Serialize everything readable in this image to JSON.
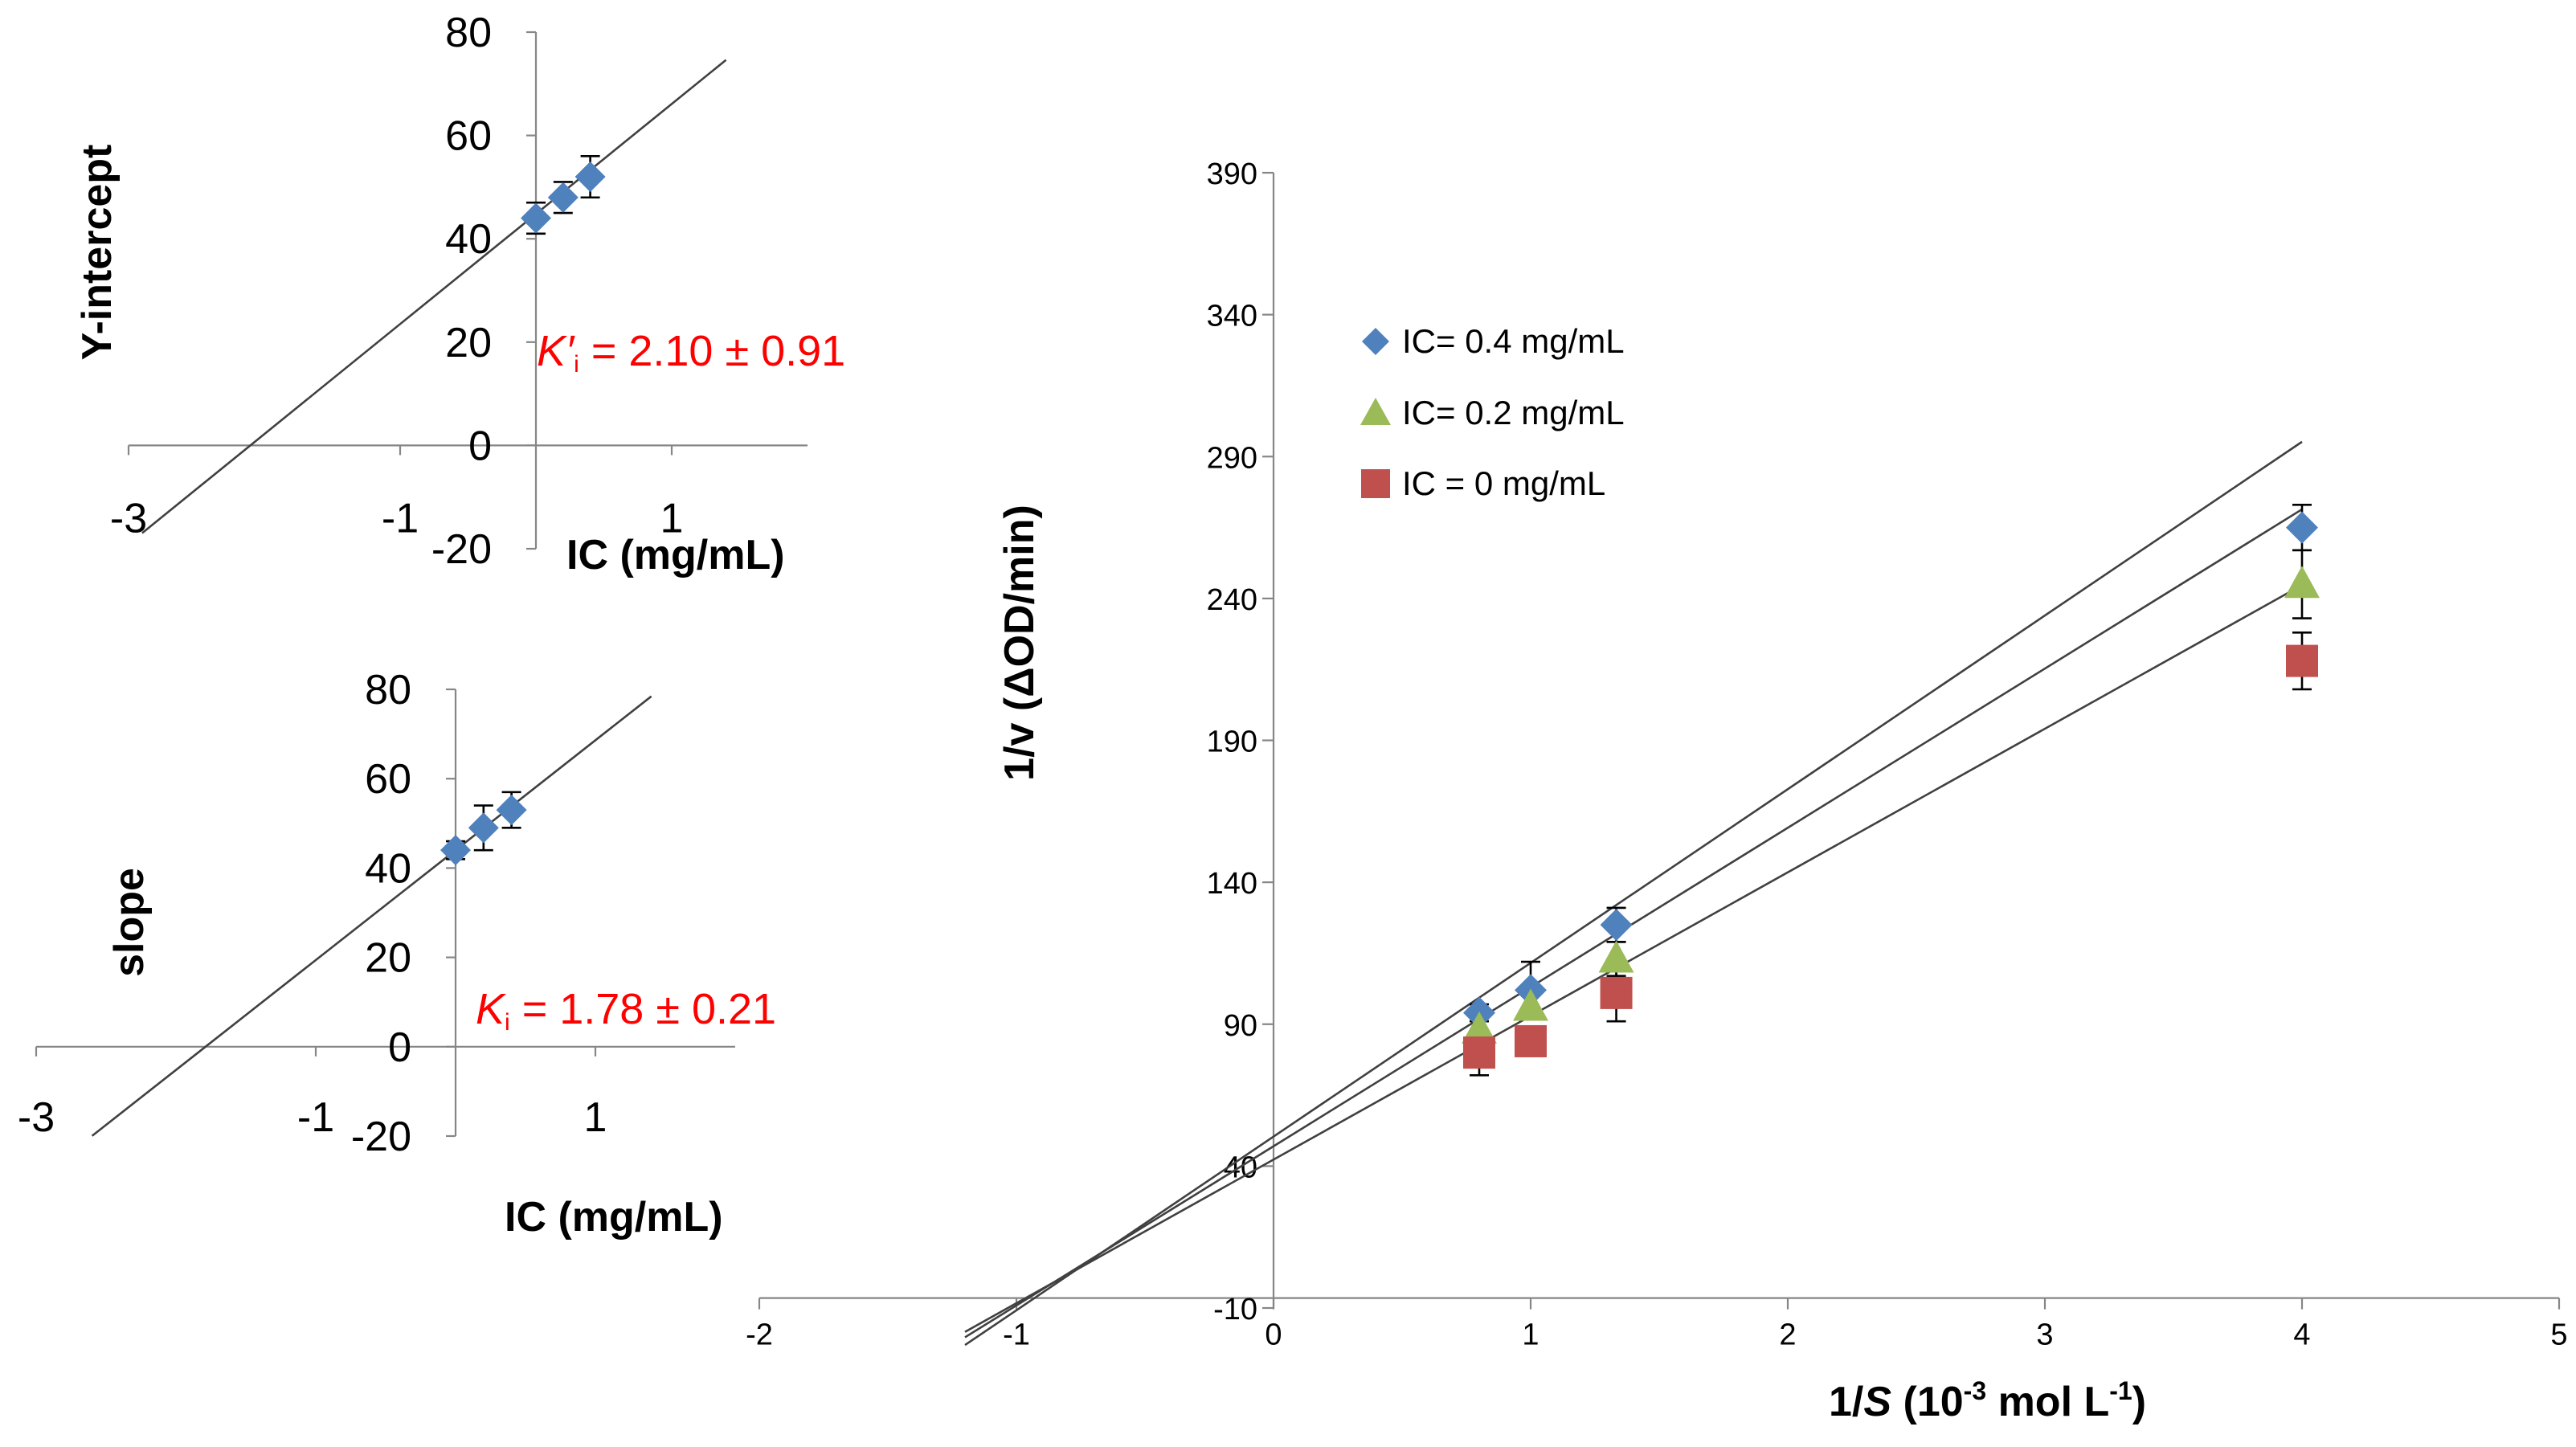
{
  "colors": {
    "series_diamond": "#4F81BD",
    "series_triangle": "#9BBB59",
    "series_square": "#C0504D",
    "fit_line": "#404040",
    "axis": "#868686",
    "annotation": "#FF0000"
  },
  "chart_data": [
    {
      "type": "scatter",
      "id": "main",
      "title": "",
      "xlabel": "1/S (10-3 mol L-1)",
      "xlabel_parts": {
        "pre": "1/",
        "italic": "S",
        "mid": " (10",
        "sup1": "-3",
        "post": " mol L",
        "sup2": "-1",
        "end": ")"
      },
      "ylabel": "1/v  (ΔOD/min)",
      "xlim": [
        -2,
        5
      ],
      "ylim": [
        -10,
        390
      ],
      "xticks": [
        "-2",
        "-1",
        "0",
        "1",
        "2",
        "3",
        "4",
        "5"
      ],
      "yticks": [
        "-10",
        "40",
        "90",
        "140",
        "190",
        "240",
        "290",
        "340",
        "390"
      ],
      "legend_position": "upper-left",
      "series": [
        {
          "name": "IC= 0.4 mg/mL",
          "marker": "diamond",
          "x": [
            0.8,
            1.0,
            1.333,
            4.0
          ],
          "y": [
            94,
            102,
            125,
            265
          ],
          "err": [
            3,
            10,
            6,
            8
          ],
          "fit": {
            "slope": 61.2,
            "intercept": 50.4,
            "x_range": [
              -1.2,
              4.0
            ]
          }
        },
        {
          "name": "IC= 0.2 mg/mL",
          "marker": "triangle",
          "x": [
            0.8,
            1.0,
            1.333,
            4.0
          ],
          "y": [
            88,
            96,
            113,
            245
          ],
          "err": [
            3,
            4,
            6,
            12
          ],
          "fit": {
            "slope": 56.1,
            "intercept": 47.0,
            "x_range": [
              -1.2,
              4.0
            ]
          }
        },
        {
          "name": "IC = 0 mg/mL",
          "marker": "square",
          "x": [
            0.8,
            1.0,
            1.333,
            4.0
          ],
          "y": [
            80,
            84,
            101,
            218
          ],
          "err": [
            8,
            4,
            10,
            10
          ],
          "fit": {
            "slope": 50.6,
            "intercept": 42.3,
            "x_range": [
              -1.2,
              4.0
            ]
          }
        }
      ]
    },
    {
      "type": "scatter",
      "id": "inset-intercept",
      "title": "",
      "xlabel": "IC (mg/mL)",
      "ylabel": "Y-intercept",
      "xlim": [
        -3,
        2
      ],
      "ylim": [
        -20,
        80
      ],
      "xticks": [
        "-3",
        "-1",
        "1"
      ],
      "yticks": [
        "-20",
        "0",
        "20",
        "40",
        "60",
        "80"
      ],
      "annotation": {
        "symbol": "K′",
        "sub": "i",
        "text": " = 2.10 ± 0.91"
      },
      "series": [
        {
          "name": "Y-intercept",
          "marker": "diamond",
          "x": [
            0.0,
            0.2,
            0.4
          ],
          "y": [
            44,
            48,
            52
          ],
          "err": [
            3,
            3,
            4
          ],
          "fit": {
            "slope": 21.3,
            "intercept": 44.8,
            "x_range": [
              -2.9,
              1.4
            ]
          }
        }
      ]
    },
    {
      "type": "scatter",
      "id": "inset-slope",
      "title": "",
      "xlabel": "IC (mg/mL)",
      "ylabel": "slope",
      "xlim": [
        -3,
        2
      ],
      "ylim": [
        -20,
        80
      ],
      "xticks": [
        "-3",
        "-1",
        "1"
      ],
      "yticks": [
        "-20",
        "0",
        "20",
        "40",
        "60",
        "80"
      ],
      "annotation": {
        "symbol": "K",
        "sub": "i",
        "text": " = 1.78 ± 0.21"
      },
      "series": [
        {
          "name": "slope",
          "marker": "diamond",
          "x": [
            0.0,
            0.2,
            0.4
          ],
          "y": [
            44,
            49,
            53
          ],
          "err": [
            2,
            5,
            4
          ],
          "fit": {
            "slope": 24.6,
            "intercept": 44.0,
            "x_range": [
              -2.6,
              1.4
            ]
          }
        }
      ]
    }
  ]
}
